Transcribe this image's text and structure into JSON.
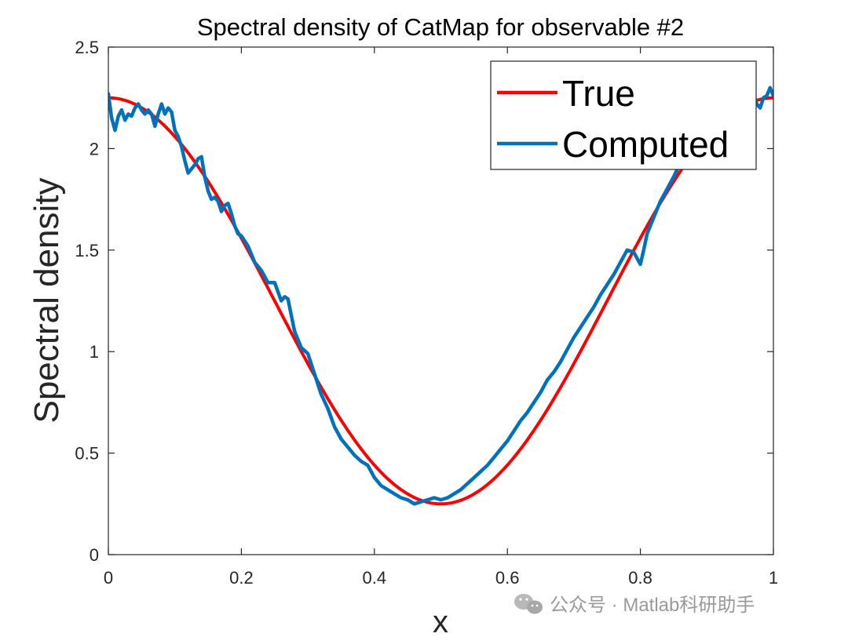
{
  "chart_data": {
    "type": "line",
    "title": "Spectral density of CatMap for observable #2",
    "xlabel": "x",
    "ylabel": "Spectral density",
    "xlim": [
      0,
      1
    ],
    "ylim": [
      0,
      2.5
    ],
    "xticks": [
      0,
      0.2,
      0.4,
      0.6,
      0.8,
      1
    ],
    "xtick_labels": [
      "0",
      "0.2",
      "0.4",
      "0.6",
      "0.8",
      "1"
    ],
    "yticks": [
      0,
      0.5,
      1,
      1.5,
      2,
      2.5
    ],
    "ytick_labels": [
      "0",
      "0.5",
      "1",
      "1.5",
      "2",
      "2.5"
    ],
    "grid": false,
    "legend_position": "top-right",
    "series": [
      {
        "name": "True",
        "color": "#ff0000",
        "formula": "1.25 + cos(2*pi*x)",
        "x": [
          0,
          0.05,
          0.1,
          0.15,
          0.2,
          0.25,
          0.3,
          0.35,
          0.4,
          0.45,
          0.5,
          0.55,
          0.6,
          0.65,
          0.7,
          0.75,
          0.8,
          0.85,
          0.9,
          0.95,
          1
        ],
        "y": [
          2.25,
          2.2,
          2.06,
          1.84,
          1.56,
          1.25,
          0.94,
          0.66,
          0.44,
          0.3,
          0.25,
          0.3,
          0.44,
          0.66,
          0.94,
          1.25,
          1.56,
          1.84,
          2.06,
          2.2,
          2.25
        ]
      },
      {
        "name": "Computed",
        "color": "#0072bd",
        "x": [
          0,
          0.005,
          0.01,
          0.015,
          0.02,
          0.025,
          0.03,
          0.035,
          0.04,
          0.045,
          0.05,
          0.055,
          0.06,
          0.065,
          0.07,
          0.075,
          0.08,
          0.085,
          0.09,
          0.095,
          0.1,
          0.105,
          0.11,
          0.115,
          0.12,
          0.125,
          0.13,
          0.135,
          0.14,
          0.145,
          0.15,
          0.155,
          0.16,
          0.165,
          0.17,
          0.175,
          0.18,
          0.185,
          0.19,
          0.195,
          0.2,
          0.21,
          0.22,
          0.23,
          0.24,
          0.25,
          0.26,
          0.265,
          0.27,
          0.275,
          0.28,
          0.29,
          0.3,
          0.31,
          0.32,
          0.33,
          0.34,
          0.35,
          0.36,
          0.37,
          0.38,
          0.39,
          0.4,
          0.41,
          0.42,
          0.43,
          0.44,
          0.45,
          0.46,
          0.47,
          0.48,
          0.49,
          0.5,
          0.51,
          0.52,
          0.53,
          0.54,
          0.55,
          0.56,
          0.57,
          0.58,
          0.59,
          0.6,
          0.61,
          0.62,
          0.63,
          0.64,
          0.65,
          0.66,
          0.67,
          0.68,
          0.69,
          0.7,
          0.71,
          0.72,
          0.73,
          0.74,
          0.75,
          0.76,
          0.77,
          0.78,
          0.79,
          0.8,
          0.805,
          0.81,
          0.815,
          0.82,
          0.83,
          0.84,
          0.85,
          0.86,
          0.87,
          0.88,
          0.89,
          0.9,
          0.91,
          0.92,
          0.93,
          0.94,
          0.95,
          0.96,
          0.97,
          0.975,
          0.98,
          0.985,
          0.99,
          0.995,
          1
        ],
        "y": [
          2.27,
          2.15,
          2.09,
          2.16,
          2.19,
          2.14,
          2.17,
          2.16,
          2.2,
          2.22,
          2.19,
          2.17,
          2.19,
          2.17,
          2.11,
          2.17,
          2.22,
          2.17,
          2.2,
          2.18,
          2.09,
          2.06,
          2.01,
          1.94,
          1.88,
          1.9,
          1.92,
          1.95,
          1.96,
          1.86,
          1.79,
          1.75,
          1.76,
          1.74,
          1.69,
          1.72,
          1.73,
          1.68,
          1.62,
          1.58,
          1.57,
          1.52,
          1.44,
          1.4,
          1.34,
          1.34,
          1.25,
          1.27,
          1.26,
          1.18,
          1.1,
          1.02,
          0.99,
          0.89,
          0.79,
          0.72,
          0.63,
          0.57,
          0.53,
          0.49,
          0.46,
          0.44,
          0.38,
          0.34,
          0.32,
          0.3,
          0.28,
          0.27,
          0.25,
          0.26,
          0.27,
          0.28,
          0.27,
          0.28,
          0.3,
          0.32,
          0.35,
          0.38,
          0.41,
          0.44,
          0.48,
          0.52,
          0.56,
          0.61,
          0.66,
          0.7,
          0.75,
          0.8,
          0.86,
          0.9,
          0.95,
          1.01,
          1.07,
          1.12,
          1.17,
          1.22,
          1.28,
          1.33,
          1.38,
          1.44,
          1.5,
          1.49,
          1.43,
          1.5,
          1.58,
          1.62,
          1.66,
          1.74,
          1.8,
          1.86,
          1.93,
          2.0,
          2.05,
          2.1,
          2.13,
          2.17,
          2.21,
          2.23,
          2.24,
          2.22,
          2.25,
          2.27,
          2.22,
          2.2,
          2.25,
          2.26,
          2.3,
          2.26
        ]
      }
    ]
  },
  "watermark": {
    "icon": "wechat-icon",
    "text": "公众号 · Matlab科研助手"
  }
}
